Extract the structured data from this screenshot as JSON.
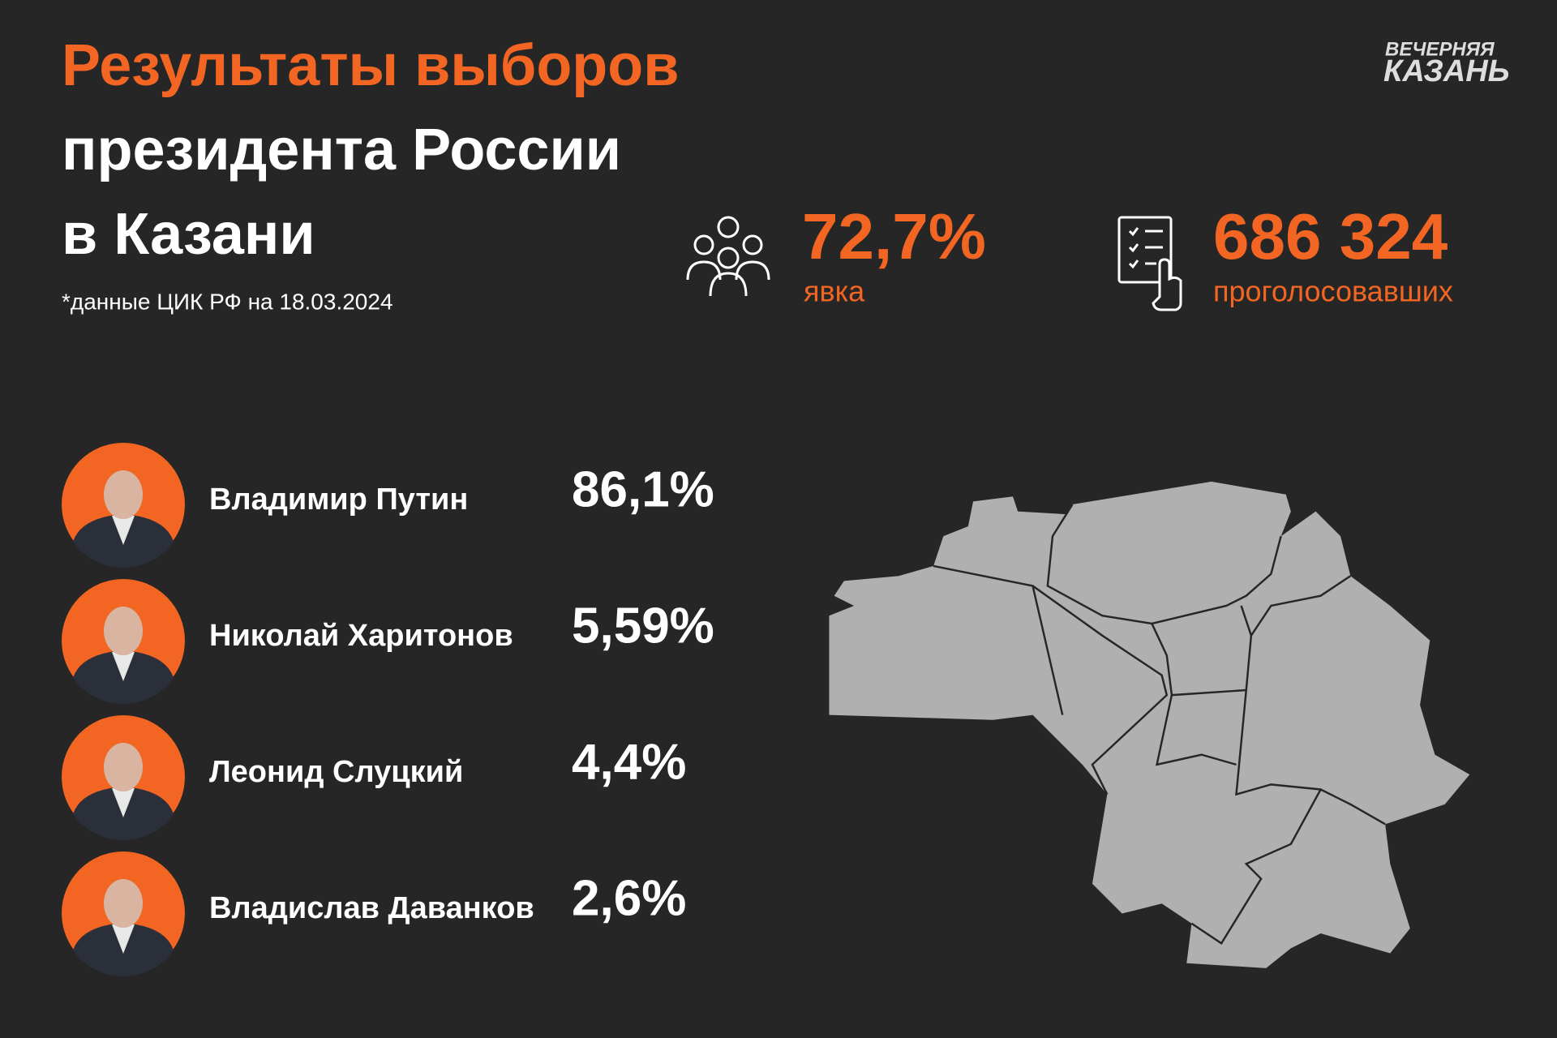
{
  "header": {
    "title_lines": [
      "Результаты выборов",
      "президента России",
      "в Казани"
    ],
    "note": "*данные ЦИК РФ на 18.03.2024"
  },
  "logo": {
    "lines": [
      "ВЕЧЕРНЯЯ",
      "КАЗАНЬ"
    ]
  },
  "stats": [
    {
      "value": "72,7%",
      "label": "явка"
    },
    {
      "value": "686 324",
      "label": "проголосовавших"
    }
  ],
  "candidates": [
    {
      "name": "Владимир Путин",
      "result": "86,1%"
    },
    {
      "name": "Николай Харитонов",
      "result": "5,59%"
    },
    {
      "name": "Леонид Слуцкий",
      "result": "4,4%"
    },
    {
      "name": "Владислав Даванков",
      "result": "2,6%"
    }
  ]
}
